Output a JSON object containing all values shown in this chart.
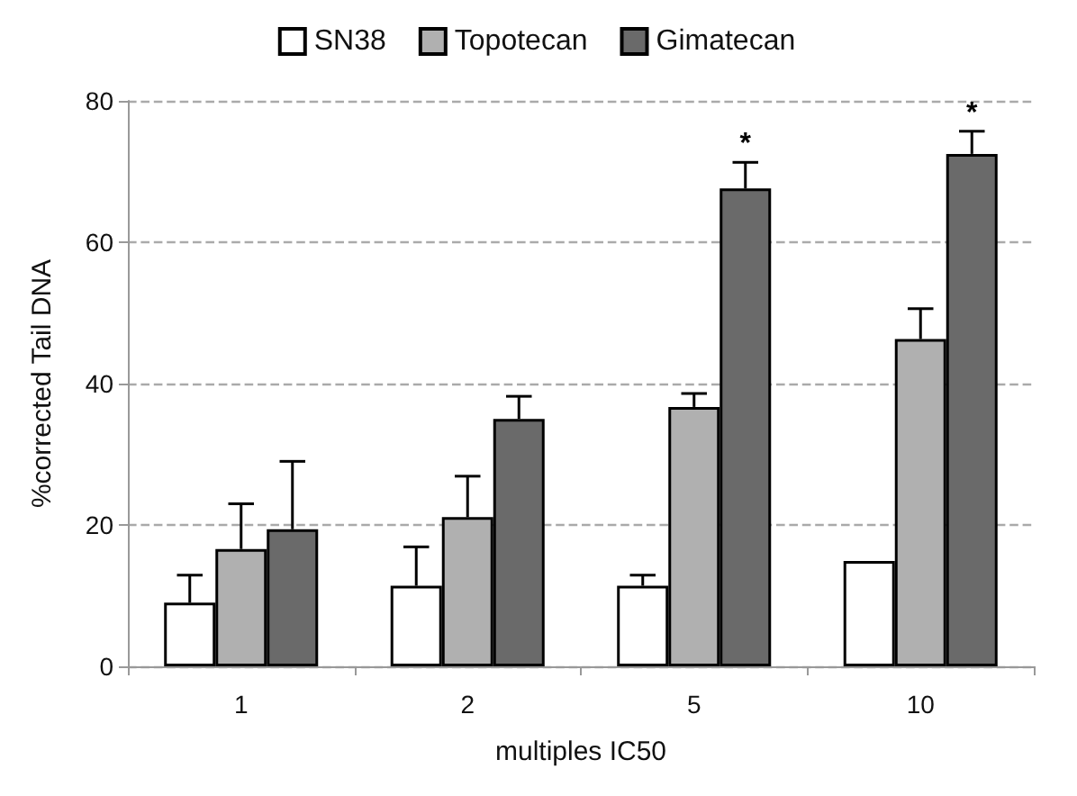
{
  "chart_data": {
    "type": "bar",
    "xlabel": "multiples IC50",
    "ylabel": "%corrected Tail DNA",
    "categories": [
      "1",
      "2",
      "5",
      "10"
    ],
    "series": [
      {
        "name": "SN38",
        "color": "#ffffff",
        "values": [
          9.0,
          11.4,
          11.4,
          14.9
        ],
        "errors": [
          [
            9.0,
            12.9
          ],
          [
            11.4,
            16.9
          ],
          [
            11.4,
            12.9
          ],
          null
        ]
      },
      {
        "name": "Topotecan",
        "color": "#b0b0b0",
        "values": [
          16.6,
          21.1,
          36.7,
          46.3
        ],
        "errors": [
          [
            16.6,
            23.0
          ],
          [
            21.1,
            26.9
          ],
          [
            36.7,
            38.6
          ],
          [
            46.3,
            50.6
          ]
        ]
      },
      {
        "name": "Gimatecan",
        "color": "#6a6a6a",
        "values": [
          19.4,
          35.0,
          67.6,
          72.5
        ],
        "errors": [
          [
            19.4,
            29.0
          ],
          [
            35.0,
            38.2
          ],
          [
            67.6,
            71.3
          ],
          [
            72.5,
            75.7
          ]
        ]
      }
    ],
    "ylim": [
      0,
      80
    ],
    "yticks": [
      0,
      20,
      40,
      60,
      80
    ],
    "grid": "y",
    "legend": "top",
    "annotations": [
      "*",
      "*"
    ]
  }
}
